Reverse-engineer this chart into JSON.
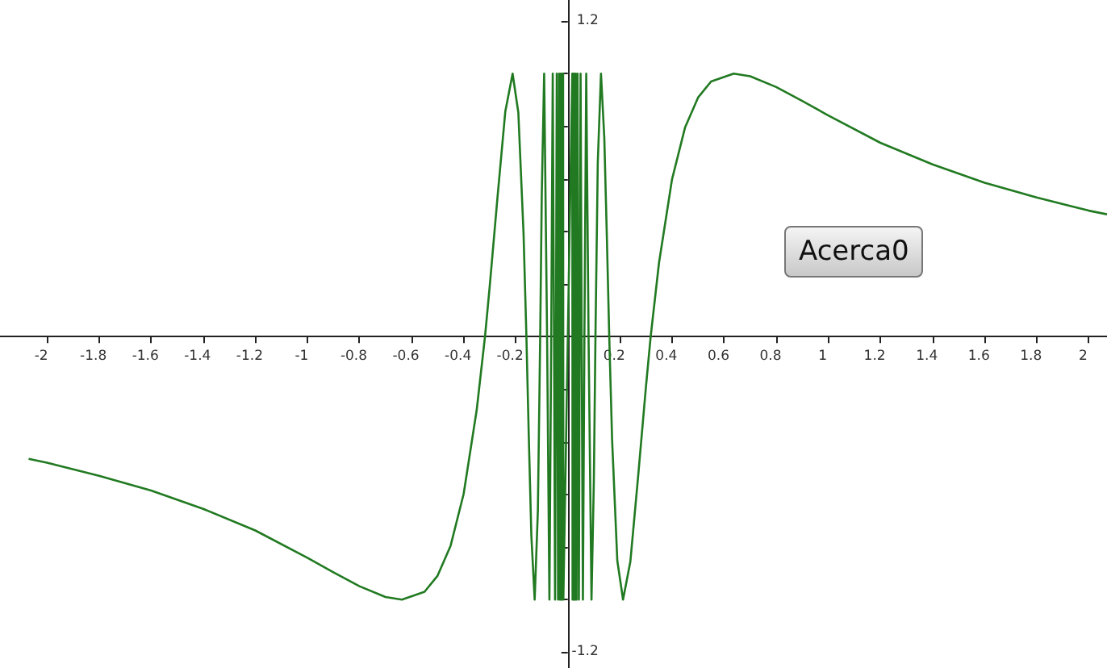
{
  "chart_data": {
    "type": "line",
    "x": [
      -2.07,
      -2,
      -1.8,
      -1.6,
      -1.4,
      -1.2,
      -1,
      -0.9,
      -0.8,
      -0.7,
      -0.637,
      -0.55,
      -0.5,
      -0.45,
      -0.4,
      -0.35,
      -0.318,
      -0.3,
      -0.27,
      -0.24,
      -0.212,
      -0.19,
      -0.17,
      -0.159,
      -0.15,
      -0.14,
      -0.1273,
      -0.115,
      -0.1061,
      -0.1,
      -0.0909,
      -0.0796,
      -0.0707,
      -0.0637,
      -0.0579,
      -0.0531,
      -0.049,
      -0.0455,
      -0.0424,
      -0.0398,
      -0.0374,
      -0.0354,
      -0.0335,
      -0.0318,
      -0.0303,
      -0.0289,
      -0.0277,
      -0.0265,
      -0.0255,
      -0.0245,
      -0.0236,
      -0.0227,
      -0.022,
      -0.0212,
      -0.0205,
      -0.0199,
      -0.0193,
      -0.0187,
      -0.0182,
      -0.0177,
      -0.0172,
      0.0172,
      0.0177,
      0.0182,
      0.0187,
      0.0193,
      0.0199,
      0.0205,
      0.0212,
      0.022,
      0.0227,
      0.0236,
      0.0245,
      0.0255,
      0.0265,
      0.0277,
      0.0289,
      0.0303,
      0.0318,
      0.0335,
      0.0354,
      0.0374,
      0.0398,
      0.0424,
      0.0455,
      0.049,
      0.0531,
      0.0579,
      0.0637,
      0.0707,
      0.0796,
      0.0909,
      0.1,
      0.1061,
      0.115,
      0.1273,
      0.14,
      0.15,
      0.159,
      0.17,
      0.19,
      0.212,
      0.24,
      0.27,
      0.3,
      0.318,
      0.35,
      0.4,
      0.45,
      0.5,
      0.55,
      0.637,
      0.7,
      0.8,
      0.9,
      1,
      1.2,
      1.4,
      1.6,
      1.8,
      2,
      2.07
    ],
    "series": [
      {
        "color": "#217a21",
        "values": [
          -0.465,
          -0.479,
          -0.529,
          -0.585,
          -0.655,
          -0.737,
          -0.841,
          -0.896,
          -0.949,
          -0.99,
          -1,
          -0.97,
          -0.909,
          -0.795,
          -0.598,
          -0.28,
          0,
          0.19,
          0.53,
          0.856,
          1,
          0.852,
          0.392,
          0,
          -0.374,
          -0.757,
          -1,
          -0.662,
          0,
          0.544,
          1,
          0,
          -1,
          0,
          1,
          0,
          -1,
          0,
          1,
          0,
          -1,
          0,
          1,
          0,
          -1,
          0,
          1,
          0,
          -1,
          0,
          1,
          0,
          -1,
          0,
          1,
          0,
          -1,
          0,
          1,
          0,
          -1,
          1,
          0,
          -1,
          0,
          1,
          0,
          -1,
          0,
          1,
          0,
          -1,
          0,
          1,
          0,
          -1,
          0,
          1,
          0,
          -1,
          0,
          1,
          0,
          -1,
          0,
          1,
          0,
          -1,
          0,
          1,
          0,
          -1,
          -0.544,
          0,
          0.662,
          1,
          0.757,
          0.374,
          0,
          -0.392,
          -0.852,
          -1,
          -0.856,
          -0.53,
          -0.19,
          0,
          0.28,
          0.598,
          0.795,
          0.909,
          0.97,
          1,
          0.99,
          0.949,
          0.896,
          0.841,
          0.737,
          0.655,
          0.585,
          0.529,
          0.479,
          0.465
        ]
      }
    ],
    "xlim": [
      -2.18,
      2.07
    ],
    "ylim": [
      -1.26,
      1.28
    ],
    "xticks": [
      -2,
      -1.8,
      -1.6,
      -1.4,
      -1.2,
      -1,
      -0.8,
      -0.6,
      -0.4,
      -0.2,
      0.2,
      0.4,
      0.6,
      0.8,
      1,
      1.2,
      1.4,
      1.6,
      1.8,
      2
    ],
    "yticks": [
      -1.2,
      {
        "value": -1,
        "label": null
      },
      {
        "value": -0.8,
        "label": null
      },
      {
        "value": -0.6,
        "label": null
      },
      {
        "value": -0.4,
        "label": null
      },
      {
        "value": -0.2,
        "label": null
      },
      {
        "value": 0.2,
        "label": null
      },
      {
        "value": 0.4,
        "label": null
      },
      {
        "value": 0.6,
        "label": null
      },
      {
        "value": 0.8,
        "label": null
      },
      {
        "value": 1,
        "label": null
      },
      1.2
    ],
    "grid": false,
    "marker": "none",
    "line_style": "solid",
    "annotations": [
      "Acerca0"
    ]
  }
}
